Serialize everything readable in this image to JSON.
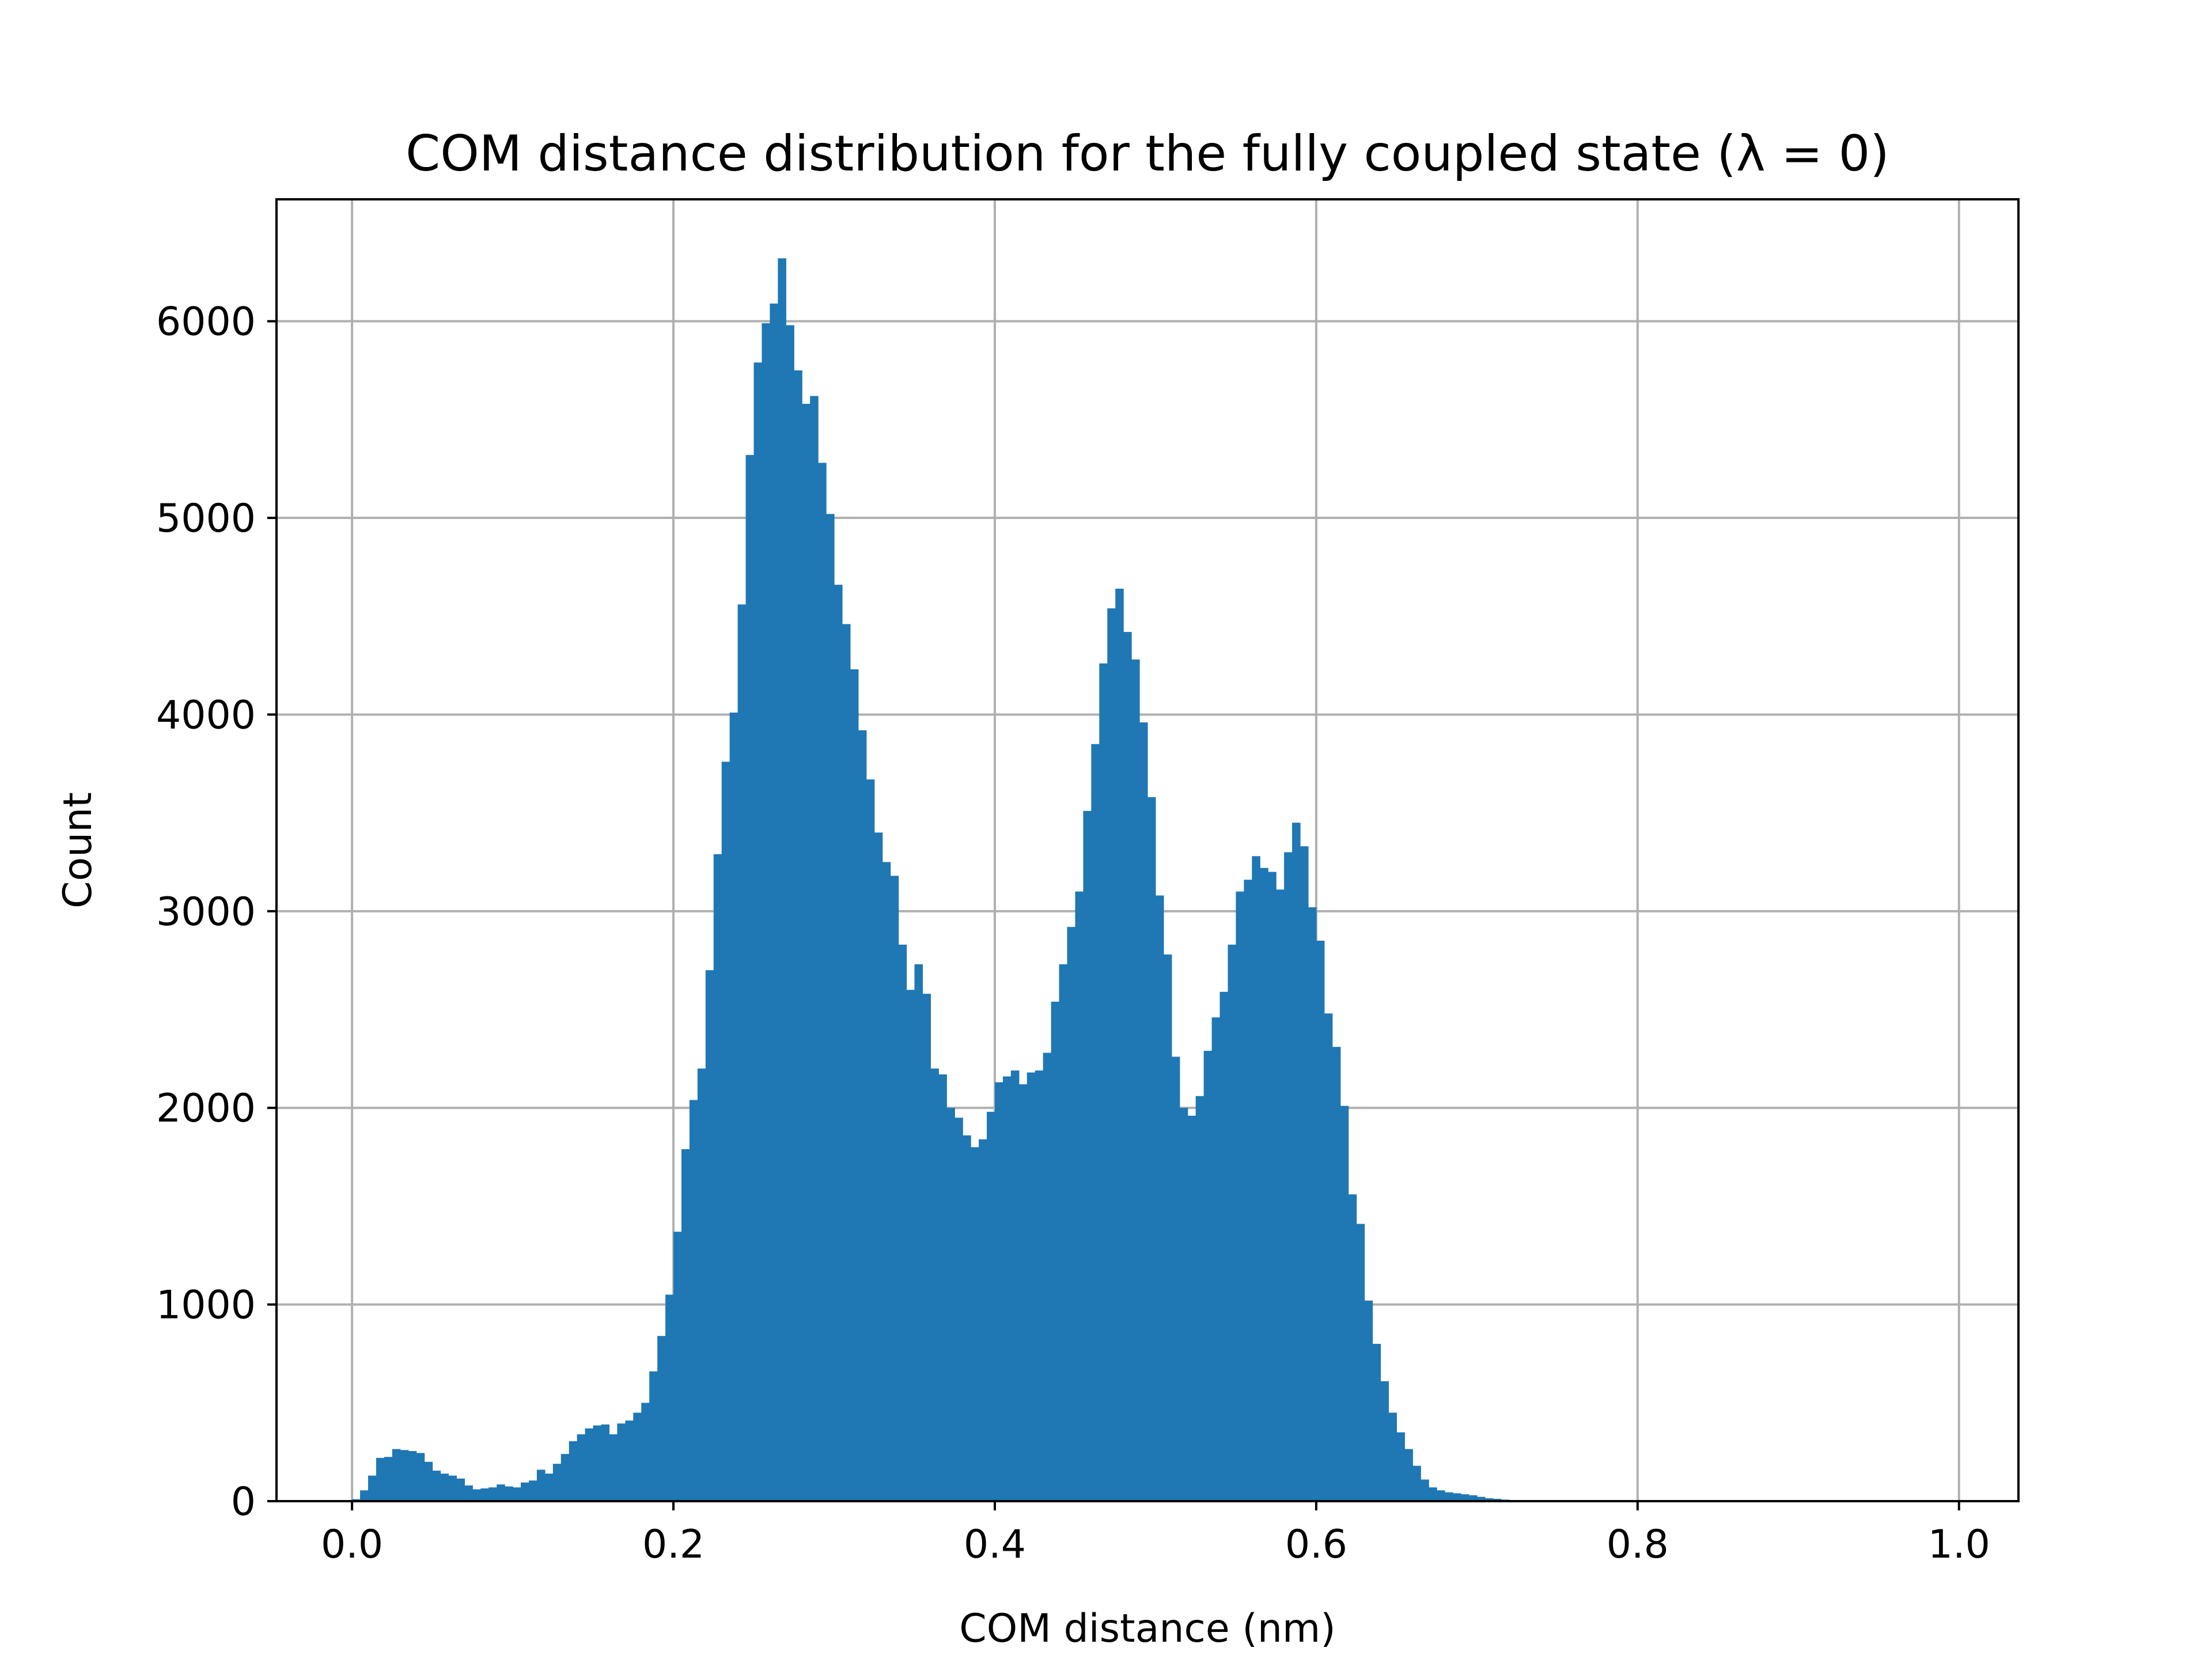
{
  "chart_data": {
    "type": "bar",
    "subtype": "histogram",
    "title": "COM distance distribution for the fully coupled state (λ = 0)",
    "xlabel": "COM distance (nm)",
    "ylabel": "Count",
    "xlim": [
      -0.047,
      1.037
    ],
    "ylim": [
      0,
      6620
    ],
    "grid": true,
    "legend": false,
    "bar_color": "#1f77b4",
    "grid_color": "#b0b0b0",
    "xticks": [
      0.0,
      0.2,
      0.4,
      0.6,
      0.8,
      1.0
    ],
    "xtick_labels": [
      "0.0",
      "0.2",
      "0.4",
      "0.6",
      "0.8",
      "1.0"
    ],
    "yticks": [
      0,
      1000,
      2000,
      3000,
      4000,
      5000,
      6000
    ],
    "ytick_labels": [
      "0",
      "1000",
      "2000",
      "3000",
      "4000",
      "5000",
      "6000"
    ],
    "bin_start": 0.0,
    "bin_width": 0.005,
    "values": [
      10,
      55,
      130,
      220,
      225,
      265,
      260,
      255,
      245,
      200,
      155,
      140,
      130,
      115,
      80,
      60,
      65,
      70,
      85,
      75,
      70,
      95,
      105,
      160,
      140,
      190,
      240,
      305,
      340,
      370,
      385,
      390,
      340,
      395,
      410,
      450,
      500,
      660,
      840,
      1050,
      1370,
      1790,
      2040,
      2200,
      2700,
      3290,
      3760,
      4010,
      4560,
      5320,
      5790,
      5990,
      6090,
      6320,
      5980,
      5750,
      5580,
      5620,
      5280,
      5020,
      4660,
      4460,
      4230,
      3920,
      3670,
      3400,
      3250,
      3180,
      2830,
      2600,
      2730,
      2580,
      2200,
      2170,
      2000,
      1950,
      1860,
      1800,
      1840,
      1980,
      2130,
      2160,
      2190,
      2120,
      2180,
      2190,
      2280,
      2540,
      2730,
      2920,
      3100,
      3510,
      3850,
      4260,
      4540,
      4640,
      4420,
      4280,
      3960,
      3580,
      3080,
      2780,
      2260,
      2000,
      1960,
      2060,
      2290,
      2460,
      2590,
      2830,
      3100,
      3160,
      3280,
      3220,
      3200,
      3110,
      3300,
      3450,
      3330,
      3020,
      2850,
      2480,
      2310,
      2010,
      1560,
      1410,
      1020,
      800,
      610,
      450,
      350,
      265,
      180,
      110,
      70,
      55,
      45,
      40,
      35,
      30,
      22,
      15,
      12,
      8,
      6,
      4,
      3,
      2,
      1,
      1,
      0,
      0,
      0,
      0,
      0,
      0,
      0,
      0,
      0,
      0
    ]
  }
}
